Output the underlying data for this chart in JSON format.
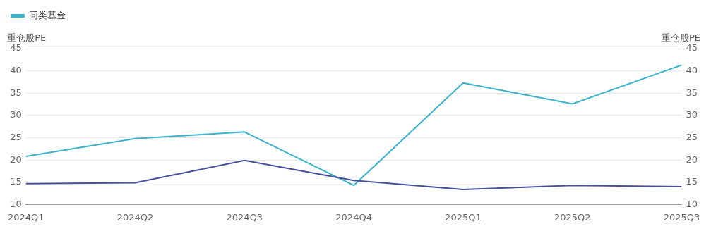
{
  "chart_data": {
    "type": "line",
    "ylabel": "重仓股PE",
    "y2label": "重仓股PE",
    "categories": [
      "2024Q1",
      "2024Q2",
      "2024Q3",
      "2024Q4",
      "2025Q1",
      "2025Q2",
      "2025Q3"
    ],
    "series": [
      {
        "color": "#4a4f9c",
        "values": [
          14.7,
          14.9,
          19.9,
          15.4,
          13.4,
          14.3,
          14.0
        ]
      },
      {
        "name": "同类基金",
        "color": "#3bb4cb",
        "values": [
          20.8,
          24.8,
          26.3,
          14.3,
          37.3,
          32.6,
          41.3
        ]
      }
    ],
    "ylim": [
      10,
      45
    ],
    "yticks": [
      10,
      15,
      20,
      25,
      30,
      35,
      40,
      45
    ],
    "y2lim": [
      10,
      45
    ],
    "y2ticks": [
      10,
      15,
      20,
      25,
      30,
      35,
      40,
      45
    ],
    "grid": "y",
    "legend": "top left",
    "marker": "none",
    "line_style": "solid"
  }
}
